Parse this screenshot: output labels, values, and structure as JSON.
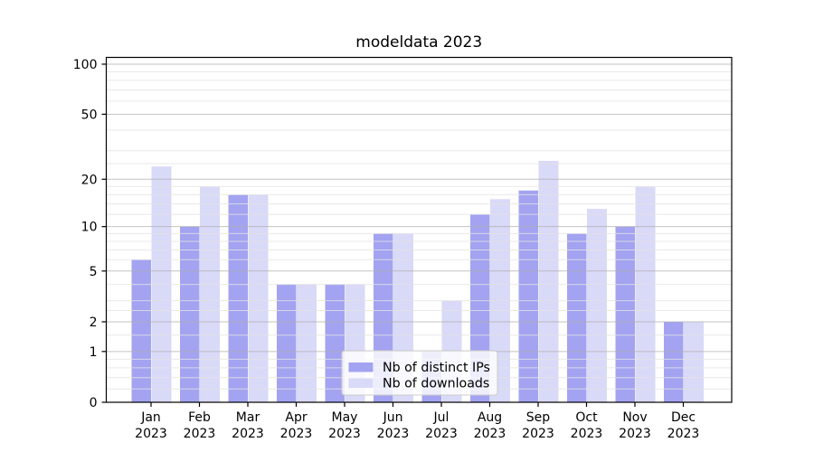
{
  "title": "modeldata 2023",
  "colors": {
    "bar_distinct_ips": "#a3a3f1",
    "bar_downloads": "#d9d9f8",
    "major_grid": "#b0b0b0",
    "minor_grid": "#e4e4e4",
    "spine": "#000000",
    "legend_border": "#cccccc",
    "legend_bg": "rgba(255,255,255,0.8)",
    "text": "#000000"
  },
  "chart_data": {
    "type": "bar",
    "title": "modeldata 2023",
    "categories": [
      "Jan",
      "Feb",
      "Mar",
      "Apr",
      "May",
      "Jun",
      "Jul",
      "Aug",
      "Sep",
      "Oct",
      "Nov",
      "Dec"
    ],
    "x_tick_second_line": "2023",
    "series": [
      {
        "name": "Nb of distinct IPs",
        "color": "#a3a3f1",
        "values": [
          6,
          10,
          16,
          4,
          4,
          9,
          1,
          12,
          17,
          9,
          10,
          2
        ]
      },
      {
        "name": "Nb of downloads",
        "color": "#d9d9f8",
        "values": [
          24,
          18,
          16,
          4,
          4,
          9,
          3,
          15,
          26,
          13,
          18,
          2
        ]
      }
    ],
    "yscale": "log1p",
    "ylim": [
      0,
      110
    ],
    "y_major_ticks": [
      0,
      1,
      2,
      5,
      10,
      20,
      50,
      100
    ],
    "y_minor_ticks": [
      0.2,
      0.4,
      0.6,
      0.8,
      1.5,
      2.5,
      3,
      4,
      6,
      7,
      8,
      9,
      12,
      14,
      16,
      18,
      25,
      30,
      40,
      60,
      70,
      80,
      90
    ],
    "xlabel": "",
    "ylabel": "",
    "grid": "on",
    "legend_position": "lower center",
    "legend": [
      "Nb of distinct IPs",
      "Nb of downloads"
    ]
  }
}
